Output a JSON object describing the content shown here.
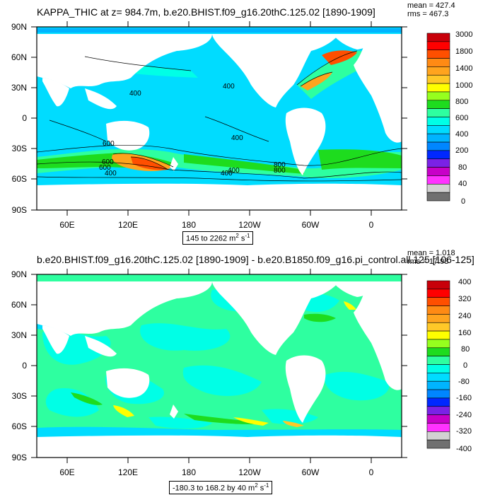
{
  "panels": [
    {
      "title": "KAPPA_THIC at z= 984.7m, b.e20.BHIST.f09_g16.20thC.125.02 [1890-1909]",
      "stats": {
        "mean": "mean = 427.4",
        "rms": "rms = 467.3"
      },
      "range": {
        "text": "145 to 2262 m",
        "sup1": "2",
        "mid": " s",
        "sup2": "-1"
      },
      "lat_ticks": [
        "90N",
        "60N",
        "30N",
        "0",
        "30S",
        "60S",
        "90S"
      ],
      "lon_ticks": [
        "60E",
        "120E",
        "180",
        "120W",
        "60W",
        "0"
      ],
      "contour_labels": [
        "400",
        "400",
        "400",
        "600",
        "600",
        "400",
        "800",
        "800",
        "400",
        "400",
        "600"
      ],
      "colorbar": {
        "labels": [
          "3000",
          "1800",
          "1400",
          "1000",
          "800",
          "600",
          "400",
          "200",
          "80",
          "40",
          "0"
        ],
        "colors": [
          "#c8000a",
          "#ff0000",
          "#ff4f00",
          "#ff8a14",
          "#ffa41e",
          "#ffc828",
          "#ffff00",
          "#96ff1e",
          "#1edc1e",
          "#2effa0",
          "#00ffe6",
          "#00dcff",
          "#00b4ff",
          "#0086ff",
          "#0028ff",
          "#7a22e6",
          "#c800c8",
          "#ff32ff",
          "#d2d2d2",
          "#707070"
        ]
      },
      "ocean_color": "#00dcff"
    },
    {
      "title": "b.e20.BHIST.f09_g16.20thC.125.02 [1890-1909] - b.e20.B1850.f09_g16.pi_control.all.125 [106-125]",
      "stats": {
        "mean": "mean = 1.018",
        "rms": "rms = 17.93"
      },
      "range": {
        "text": "-180.3 to 168.2 by 40 m",
        "sup1": "2",
        "mid": " s",
        "sup2": "-1"
      },
      "lat_ticks": [
        "90N",
        "60N",
        "30N",
        "0",
        "30S",
        "60S",
        "90S"
      ],
      "lon_ticks": [
        "60E",
        "120E",
        "180",
        "120W",
        "60W",
        "0"
      ],
      "colorbar": {
        "labels": [
          "400",
          "320",
          "240",
          "160",
          "80",
          "0",
          "-80",
          "-160",
          "-240",
          "-320",
          "-400"
        ],
        "colors": [
          "#c8000a",
          "#ff0000",
          "#ff4f00",
          "#ff8a14",
          "#ffa41e",
          "#ffc828",
          "#ffff00",
          "#96ff1e",
          "#1edc1e",
          "#2effa0",
          "#00ffe6",
          "#00dcff",
          "#00b4ff",
          "#0086ff",
          "#0028ff",
          "#7a22e6",
          "#c800c8",
          "#ff32ff",
          "#d2d2d2",
          "#707070"
        ]
      },
      "ocean_color": "#2effa0"
    }
  ]
}
